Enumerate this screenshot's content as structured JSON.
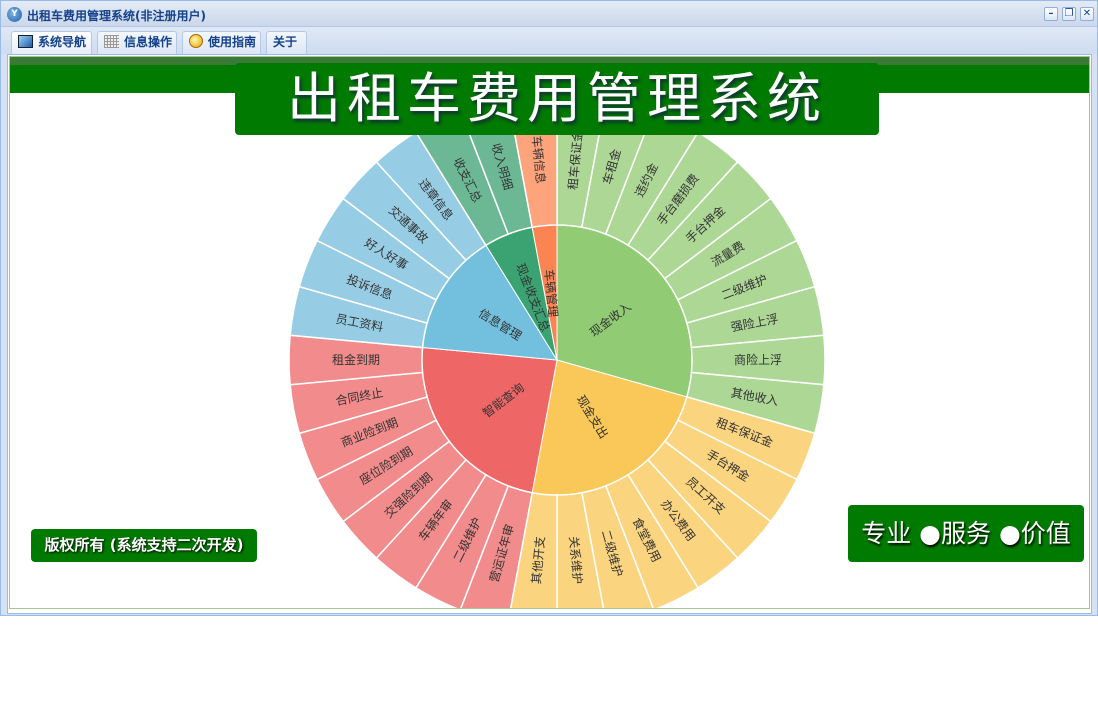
{
  "window": {
    "title": "出租车费用管理系统(非注册用户)",
    "minimize": "–",
    "restore": "❐",
    "close": "✕"
  },
  "tabs": [
    {
      "label": "系统导航",
      "icon": "window-icon"
    },
    {
      "label": "信息操作",
      "icon": "grid-icon"
    },
    {
      "label": "使用指南",
      "icon": "help-icon"
    },
    {
      "label": "关于",
      "icon": ""
    }
  ],
  "banner": {
    "title": "出租车费用管理系统",
    "copyright": "版权所有 (系统支持二次开发)",
    "slogan": "专业 ●服务 ●价值"
  },
  "colors": {
    "brand_green": "#007a00"
  },
  "chart_data": {
    "type": "sunburst",
    "children": [
      {
        "name": "现金收入",
        "color": "#91cc75",
        "leafColor": "#acd795",
        "children": [
          "租车保证金",
          "车租金",
          "违约金",
          "手台磨损费",
          "手台押金",
          "流量费",
          "二级维护",
          "强险上浮",
          "商险上浮",
          "其他收入"
        ]
      },
      {
        "name": "现金支出",
        "color": "#fac858",
        "leafColor": "#fbd47f",
        "children": [
          "租车保证金",
          "手台押金",
          "员工开支",
          "办公费用",
          "食堂费用",
          "二级维护",
          "关系维护",
          "其他开支"
        ]
      },
      {
        "name": "智能查询",
        "color": "#ee6666",
        "leafColor": "#f28b8b",
        "children": [
          "营运证年审",
          "二级维护",
          "车辆年审",
          "交强险到期",
          "座位险到期",
          "商业险到期",
          "合同终止",
          "租金到期"
        ]
      },
      {
        "name": "信息管理",
        "color": "#73c0de",
        "leafColor": "#97cde4",
        "children": [
          "员工资料",
          "投诉信息",
          "好人好事",
          "交通事故",
          "违章信息"
        ]
      },
      {
        "name": "现金收支汇总",
        "color": "#3ba272",
        "leafColor": "#6cb894",
        "children": [
          "收支汇总",
          "收入明细"
        ]
      },
      {
        "name": "车辆管理",
        "color": "#fc8452",
        "leafColor": "#fda47d",
        "children": [
          "车辆信息"
        ]
      }
    ]
  }
}
